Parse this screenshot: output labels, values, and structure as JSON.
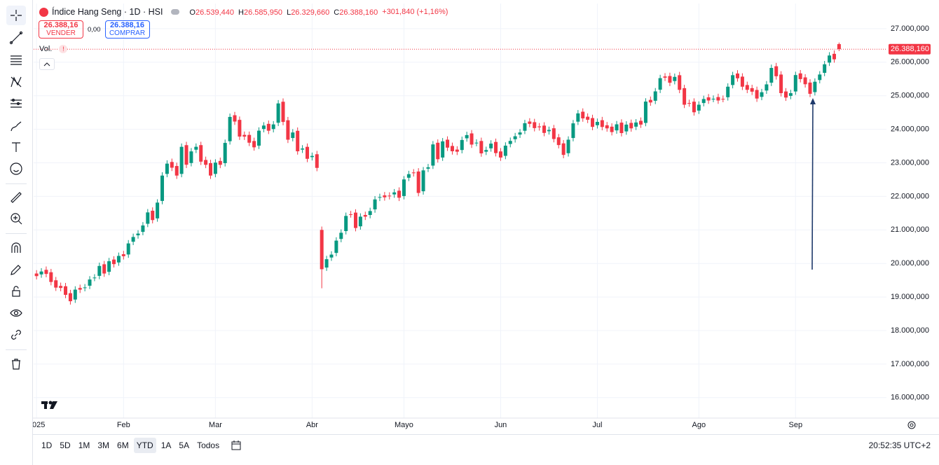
{
  "header": {
    "title": "Índice Hang Seng · 1D · HSI",
    "ohlc": [
      {
        "key": "O",
        "value": "26.539,440"
      },
      {
        "key": "H",
        "value": "26.585,950"
      },
      {
        "key": "L",
        "value": "26.329,660"
      },
      {
        "key": "C",
        "value": "26.388,160"
      }
    ],
    "change": "+301,840 (+1,16%)"
  },
  "trade": {
    "sell_price": "26.388,16",
    "sell_label": "VENDER",
    "spread": "0,00",
    "buy_price": "26.388,16",
    "buy_label": "COMPRAR"
  },
  "volume_label": "Vol.",
  "ranges": [
    "1D",
    "5D",
    "1M",
    "3M",
    "6M",
    "YTD",
    "1A",
    "5A",
    "Todos"
  ],
  "active_range": 5,
  "clock": "20:52:35 UTC+2",
  "chart_data": {
    "type": "candlestick",
    "up_color": "#089981",
    "down_color": "#f23645",
    "grid": true,
    "xlim": [
      -0.6,
      175.8
    ],
    "ylim": [
      15390,
      27750
    ],
    "xticks": [
      {
        "value": 0,
        "label": "2025"
      },
      {
        "value": 18,
        "label": "Feb"
      },
      {
        "value": 37,
        "label": "Mar"
      },
      {
        "value": 57,
        "label": "Abr"
      },
      {
        "value": 76,
        "label": "Mayo"
      },
      {
        "value": 96,
        "label": "Jun"
      },
      {
        "value": 116,
        "label": "Jul"
      },
      {
        "value": 137,
        "label": "Ago"
      },
      {
        "value": 157,
        "label": "Sep"
      }
    ],
    "yticks": [
      {
        "value": 16000,
        "label": "16.000,000"
      },
      {
        "value": 17000,
        "label": "17.000,000"
      },
      {
        "value": 18000,
        "label": "18.000,000"
      },
      {
        "value": 19000,
        "label": "19.000,000"
      },
      {
        "value": 20000,
        "label": "20.000,000"
      },
      {
        "value": 21000,
        "label": "21.000,000"
      },
      {
        "value": 22000,
        "label": "22.000,000"
      },
      {
        "value": 23000,
        "label": "23.000,000"
      },
      {
        "value": 24000,
        "label": "24.000,000"
      },
      {
        "value": 25000,
        "label": "25.000,000"
      },
      {
        "value": 26000,
        "label": "26.000,000"
      },
      {
        "value": 27000,
        "label": "27.000,000"
      }
    ],
    "last_price": {
      "value": 26388.16,
      "label": "26.388,160"
    },
    "open": [
      19700,
      19673,
      19810,
      19738,
      19498,
      19330,
      19320,
      19114,
      18924,
      19270,
      19269,
      19336,
      19572,
      19630,
      19975,
      19750,
      20116,
      20030,
      20275,
      20267,
      20647,
      20839,
      20941,
      21183,
      21572,
      21344,
      21864,
      22670,
      23026,
      22905,
      22670,
      23527,
      22994,
      23391,
      23528,
      23085,
      22991,
      22670,
      23056,
      22991,
      23644,
      24419,
      24281,
      23833,
      23832,
      23650,
      23512,
      24009,
      24162,
      24007,
      24195,
      24821,
      24269,
      23740,
      23955,
      23394,
      23477,
      23170,
      23256,
      21000,
      19878,
      20177,
      20314,
      20731,
      20965,
      21467,
      21516,
      21107,
      21445,
      21445,
      21612,
      21959,
      22030,
      22022,
      22058,
      22169,
      22010,
      22555,
      22713,
      22741,
      22152,
      22825,
      22917,
      23599,
      23158,
      23690,
      23503,
      23395,
      23382,
      23731,
      23877,
      23594,
      23651,
      23332,
      23432,
      23623,
      23340,
      23208,
      23562,
      23704,
      23842,
      23956,
      24231,
      24212,
      24086,
      24110,
      23942,
      24030,
      23760,
      23580,
      23287,
      23740,
      24227,
      24524,
      24375,
      24334,
      24122,
      24271,
      24119,
      24078,
      23967,
      24198,
      23937,
      24190,
      24078,
      24253,
      24190,
      24876,
      24850,
      25180,
      25575,
      25588,
      25438,
      25612,
      25226,
      24783,
      24823,
      24557,
      24783,
      24952,
      24908,
      24960,
      24908,
      24956,
      25320,
      25663,
      25570,
      25320,
      25227,
      25172,
      24967,
      25155,
      25389,
      25879,
      25632,
      25128,
      24996,
      25127,
      25667,
      25547,
      25393,
      25108,
      25468,
      25683,
      25988,
      26250,
      26539.44
    ],
    "high": [
      19800,
      19860,
      19910,
      19838,
      19598,
      19430,
      19420,
      19214,
      19320,
      19370,
      19386,
      19622,
      19680,
      20025,
      20075,
      20166,
      20216,
      20325,
      20375,
      20697,
      20889,
      20991,
      21233,
      21622,
      21672,
      21914,
      22720,
      23076,
      23126,
      23005,
      23577,
      23627,
      23441,
      23578,
      23628,
      23185,
      23091,
      23106,
      23156,
      23694,
      24469,
      24519,
      24381,
      23933,
      23932,
      23750,
      24059,
      24212,
      24262,
      24245,
      24871,
      24921,
      24369,
      24005,
      24055,
      23527,
      23577,
      23306,
      23356,
      21100,
      20227,
      20364,
      20781,
      21015,
      21517,
      21567,
      21616,
      21495,
      21545,
      21662,
      22009,
      22080,
      22130,
      22122,
      22219,
      22269,
      22605,
      22763,
      22813,
      22841,
      22875,
      22967,
      23649,
      23699,
      23740,
      23790,
      23603,
      23495,
      23781,
      23927,
      23977,
      23701,
      23751,
      23482,
      23673,
      23723,
      23440,
      23612,
      23754,
      23892,
      24006,
      24281,
      24331,
      24312,
      24186,
      24210,
      24080,
      24130,
      23860,
      23680,
      23790,
      24277,
      24574,
      24624,
      24475,
      24434,
      24321,
      24371,
      24219,
      24178,
      24248,
      24298,
      24240,
      24290,
      24303,
      24353,
      24926,
      24976,
      25230,
      25625,
      25675,
      25688,
      25662,
      25712,
      25326,
      24883,
      24923,
      24833,
      25002,
      25052,
      25010,
      25060,
      25008,
      25370,
      25713,
      25763,
      25670,
      25420,
      25327,
      25272,
      25205,
      25439,
      25929,
      25979,
      25732,
      25228,
      25177,
      25717,
      25767,
      25643,
      25493,
      25518,
      25733,
      26038,
      26300,
      26350,
      26585.95
    ],
    "low": [
      19523,
      19573,
      19588,
      19348,
      19180,
      19170,
      18964,
      18774,
      18824,
      19119,
      19169,
      19236,
      19472,
      19530,
      19600,
      19650,
      19880,
      19930,
      20117,
      20167,
      20547,
      20739,
      20841,
      21083,
      21194,
      21244,
      21764,
      22570,
      22755,
      22520,
      22570,
      22844,
      22894,
      23291,
      22935,
      22841,
      22520,
      22570,
      22841,
      22891,
      23544,
      24131,
      23683,
      23682,
      23500,
      23362,
      23412,
      23909,
      23857,
      23907,
      24095,
      24119,
      23590,
      23640,
      23244,
      23294,
      23020,
      23070,
      22749,
      19260,
      19778,
      20077,
      20214,
      20631,
      20865,
      21366,
      20957,
      21007,
      21295,
      21345,
      21512,
      21859,
      21872,
      21908,
      21958,
      21860,
      21910,
      22455,
      22591,
      22002,
      22052,
      22725,
      22817,
      23008,
      23058,
      23353,
      23245,
      23232,
      23282,
      23631,
      23444,
      23494,
      23182,
      23232,
      23332,
      23190,
      23058,
      23108,
      23462,
      23604,
      23742,
      23856,
      24062,
      23936,
      23960,
      23792,
      23842,
      23610,
      23430,
      23137,
      23187,
      23640,
      24127,
      24225,
      24184,
      23972,
      24022,
      23969,
      23928,
      23817,
      23867,
      23787,
      23837,
      23928,
      23978,
      24040,
      24090,
      24700,
      24750,
      25080,
      25438,
      25288,
      25338,
      25076,
      24633,
      24673,
      24407,
      24457,
      24683,
      24758,
      24808,
      24758,
      24806,
      24856,
      25220,
      25420,
      25170,
      25077,
      25022,
      24817,
      24867,
      25055,
      25289,
      25482,
      24978,
      24846,
      24896,
      25027,
      25397,
      25243,
      24958,
      25008,
      25368,
      25583,
      25888,
      25986,
      26329.66
    ],
    "close": [
      19623,
      19760,
      19688,
      19448,
      19280,
      19270,
      19064,
      18874,
      19220,
      19219,
      19286,
      19522,
      19580,
      19925,
      19700,
      20066,
      19980,
      20225,
      20217,
      20597,
      20789,
      20891,
      21133,
      21522,
      21294,
      21814,
      22620,
      22976,
      22855,
      22620,
      23477,
      22944,
      23341,
      23478,
      23035,
      22941,
      22620,
      23006,
      22941,
      23594,
      24369,
      24231,
      23783,
      23782,
      23600,
      23462,
      23959,
      24112,
      23957,
      24145,
      24771,
      24219,
      23690,
      23905,
      23344,
      23427,
      23120,
      23206,
      22849,
      19828,
      20127,
      20264,
      20681,
      20915,
      21417,
      21466,
      21057,
      21395,
      21395,
      21562,
      21909,
      21980,
      21972,
      22008,
      22119,
      21960,
      22505,
      22663,
      22691,
      22102,
      22775,
      22867,
      23549,
      23108,
      23640,
      23453,
      23345,
      23332,
      23681,
      23827,
      23544,
      23601,
      23282,
      23382,
      23573,
      23290,
      23158,
      23512,
      23654,
      23792,
      23906,
      24181,
      24162,
      24036,
      24060,
      23892,
      23980,
      23710,
      23530,
      23237,
      23690,
      24177,
      24474,
      24325,
      24284,
      24072,
      24221,
      24069,
      24028,
      23917,
      24148,
      23887,
      24140,
      24028,
      24203,
      24140,
      24826,
      24800,
      25130,
      25525,
      25538,
      25388,
      25562,
      25176,
      24733,
      24773,
      24507,
      24733,
      24902,
      24858,
      24910,
      24858,
      24906,
      25270,
      25613,
      25520,
      25270,
      25177,
      25122,
      24917,
      25105,
      25339,
      25829,
      25582,
      25078,
      24946,
      25077,
      25617,
      25497,
      25343,
      25058,
      25418,
      25633,
      25938,
      26200,
      26086,
      26388.16
    ]
  }
}
